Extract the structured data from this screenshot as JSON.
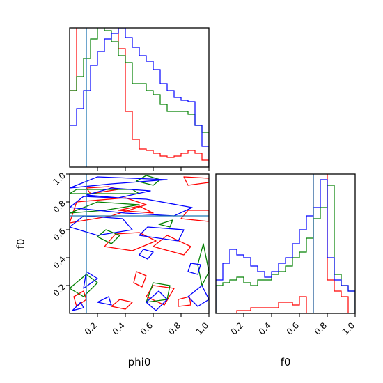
{
  "chart_data": {
    "type": "corner",
    "parameters": [
      "phi0",
      "f0"
    ],
    "truth_values": {
      "phi0": 0.12,
      "f0": 0.7
    },
    "colors": {
      "red": "#ff0000",
      "green": "#008000",
      "blue": "#0000ff",
      "truth": "#1f77b4"
    },
    "ranges": {
      "phi0": [
        0,
        1
      ],
      "f0": [
        0,
        1
      ]
    },
    "ticks": {
      "phi0_x": [
        "0.2",
        "0.4",
        "0.6",
        "0.8",
        "1.0"
      ],
      "f0_x": [
        "0.2",
        "0.4",
        "0.6",
        "0.8",
        "1.0"
      ],
      "f0_y": [
        "0.2",
        "0.4",
        "0.6",
        "0.8",
        "1.0"
      ]
    },
    "labels": {
      "phi0_x": "phi0",
      "f0_x": "f0",
      "f0_y": "f0"
    },
    "hist_phi0": {
      "bins": 20,
      "red": [
        0.55,
        1.35,
        1.6,
        1.6,
        1.35,
        1.15,
        1.05,
        0.85,
        0.4,
        0.2,
        0.13,
        0.12,
        0.1,
        0.08,
        0.07,
        0.08,
        0.1,
        0.12,
        0.1,
        0.05
      ],
      "green": [
        0.55,
        0.65,
        0.78,
        0.92,
        1.03,
        0.98,
        0.9,
        0.8,
        0.75,
        0.6,
        0.6,
        0.55,
        0.52,
        0.45,
        0.4,
        0.4,
        0.4,
        0.38,
        0.3,
        0.25
      ],
      "blue": [
        0.3,
        0.42,
        0.55,
        0.73,
        0.83,
        0.92,
        0.96,
        1.0,
        0.93,
        0.86,
        0.8,
        0.76,
        0.7,
        0.6,
        0.55,
        0.5,
        0.48,
        0.47,
        0.3,
        0.15
      ]
    },
    "hist_f0": {
      "bins": 20,
      "red": [
        0.0,
        0.0,
        0.0,
        0.01,
        0.01,
        0.02,
        0.02,
        0.02,
        0.02,
        0.04,
        0.04,
        0.03,
        0.06,
        0.0,
        1.3,
        1.6,
        0.12,
        0.08,
        0.06,
        0.0
      ],
      "green": [
        0.1,
        0.11,
        0.12,
        0.13,
        0.11,
        0.1,
        0.12,
        0.12,
        0.14,
        0.15,
        0.17,
        0.2,
        0.22,
        0.27,
        0.34,
        0.38,
        0.46,
        0.14,
        0.1,
        0.08
      ],
      "blue": [
        0.12,
        0.18,
        0.23,
        0.21,
        0.2,
        0.17,
        0.15,
        0.13,
        0.15,
        0.18,
        0.2,
        0.25,
        0.3,
        0.35,
        0.38,
        0.48,
        0.2,
        0.12,
        0.1,
        0.08
      ]
    },
    "contours_2d": {
      "red": [
        [
          [
            0.05,
            0.05
          ],
          [
            0.12,
            0.1
          ],
          [
            0.1,
            0.16
          ],
          [
            0.03,
            0.12
          ]
        ],
        [
          [
            0.3,
            0.05
          ],
          [
            0.4,
            0.03
          ],
          [
            0.45,
            0.08
          ],
          [
            0.36,
            0.1
          ]
        ],
        [
          [
            0.55,
            0.12
          ],
          [
            0.68,
            0.06
          ],
          [
            0.75,
            0.18
          ],
          [
            0.6,
            0.2
          ]
        ],
        [
          [
            0.78,
            0.05
          ],
          [
            0.87,
            0.06
          ],
          [
            0.86,
            0.12
          ],
          [
            0.78,
            0.1
          ]
        ],
        [
          [
            0.46,
            0.22
          ],
          [
            0.52,
            0.19
          ],
          [
            0.55,
            0.27
          ],
          [
            0.48,
            0.3
          ]
        ],
        [
          [
            0.25,
            0.48
          ],
          [
            0.45,
            0.45
          ],
          [
            0.62,
            0.52
          ],
          [
            0.5,
            0.58
          ],
          [
            0.33,
            0.57
          ]
        ],
        [
          [
            0.6,
            0.48
          ],
          [
            0.82,
            0.42
          ],
          [
            0.87,
            0.48
          ],
          [
            0.7,
            0.56
          ]
        ],
        [
          [
            0.0,
            0.65
          ],
          [
            0.3,
            0.7
          ],
          [
            0.55,
            0.78
          ],
          [
            0.4,
            0.83
          ],
          [
            0.05,
            0.8
          ]
        ],
        [
          [
            0.35,
            0.74
          ],
          [
            0.6,
            0.72
          ],
          [
            0.5,
            0.77
          ]
        ],
        [
          [
            0.8,
            0.68
          ],
          [
            1.0,
            0.66
          ],
          [
            1.0,
            0.74
          ],
          [
            0.85,
            0.74
          ]
        ],
        [
          [
            0.15,
            0.86
          ],
          [
            0.35,
            0.89
          ],
          [
            0.28,
            0.91
          ],
          [
            0.12,
            0.9
          ]
        ],
        [
          [
            0.85,
            0.92
          ],
          [
            1.0,
            0.94
          ],
          [
            1.0,
            0.97
          ],
          [
            0.82,
            0.98
          ]
        ]
      ],
      "green": [
        [
          [
            0.0,
            0.18
          ],
          [
            0.1,
            0.12
          ],
          [
            0.2,
            0.22
          ],
          [
            0.12,
            0.28
          ]
        ],
        [
          [
            0.55,
            0.08
          ],
          [
            0.7,
            0.1
          ],
          [
            0.72,
            0.2
          ],
          [
            0.6,
            0.22
          ]
        ],
        [
          [
            0.95,
            0.2
          ],
          [
            1.0,
            0.3
          ],
          [
            0.96,
            0.5
          ],
          [
            0.92,
            0.35
          ]
        ],
        [
          [
            0.2,
            0.55
          ],
          [
            0.3,
            0.5
          ],
          [
            0.36,
            0.56
          ],
          [
            0.26,
            0.6
          ]
        ],
        [
          [
            0.64,
            0.64
          ],
          [
            0.72,
            0.62
          ],
          [
            0.74,
            0.67
          ]
        ],
        [
          [
            0.0,
            0.72
          ],
          [
            0.25,
            0.74
          ],
          [
            0.5,
            0.78
          ],
          [
            0.2,
            0.8
          ]
        ],
        [
          [
            0.0,
            0.86
          ],
          [
            0.5,
            0.86
          ],
          [
            0.45,
            0.89
          ],
          [
            0.05,
            0.89
          ]
        ],
        [
          [
            0.48,
            0.95
          ],
          [
            0.6,
            0.92
          ],
          [
            0.65,
            0.96
          ],
          [
            0.55,
            0.99
          ]
        ]
      ],
      "blue": [
        [
          [
            0.02,
            0.02
          ],
          [
            0.1,
            0.04
          ],
          [
            0.08,
            0.08
          ]
        ],
        [
          [
            0.2,
            0.08
          ],
          [
            0.3,
            0.06
          ],
          [
            0.28,
            0.12
          ]
        ],
        [
          [
            0.55,
            0.08
          ],
          [
            0.62,
            0.02
          ],
          [
            0.7,
            0.1
          ],
          [
            0.64,
            0.16
          ]
        ],
        [
          [
            0.85,
            0.12
          ],
          [
            0.92,
            0.05
          ],
          [
            1.0,
            0.1
          ],
          [
            0.95,
            0.2
          ]
        ],
        [
          [
            0.1,
            0.18
          ],
          [
            0.2,
            0.25
          ],
          [
            0.12,
            0.3
          ]
        ],
        [
          [
            0.0,
            0.62
          ],
          [
            0.2,
            0.56
          ],
          [
            0.45,
            0.6
          ],
          [
            0.38,
            0.68
          ],
          [
            0.1,
            0.7
          ]
        ],
        [
          [
            0.5,
            0.56
          ],
          [
            0.78,
            0.52
          ],
          [
            0.82,
            0.6
          ],
          [
            0.56,
            0.62
          ]
        ],
        [
          [
            0.0,
            0.76
          ],
          [
            0.4,
            0.72
          ],
          [
            0.75,
            0.7
          ],
          [
            0.88,
            0.76
          ],
          [
            0.55,
            0.82
          ],
          [
            0.1,
            0.84
          ]
        ],
        [
          [
            0.12,
            0.85
          ],
          [
            0.35,
            0.83
          ],
          [
            0.58,
            0.88
          ],
          [
            0.3,
            0.9
          ]
        ],
        [
          [
            0.0,
            0.9
          ],
          [
            0.3,
            0.93
          ],
          [
            0.7,
            0.96
          ],
          [
            0.2,
            0.98
          ]
        ],
        [
          [
            0.5,
            0.42
          ],
          [
            0.56,
            0.39
          ],
          [
            0.6,
            0.44
          ],
          [
            0.53,
            0.46
          ]
        ],
        [
          [
            0.85,
            0.3
          ],
          [
            0.92,
            0.28
          ],
          [
            0.94,
            0.35
          ],
          [
            0.87,
            0.36
          ]
        ]
      ]
    }
  }
}
